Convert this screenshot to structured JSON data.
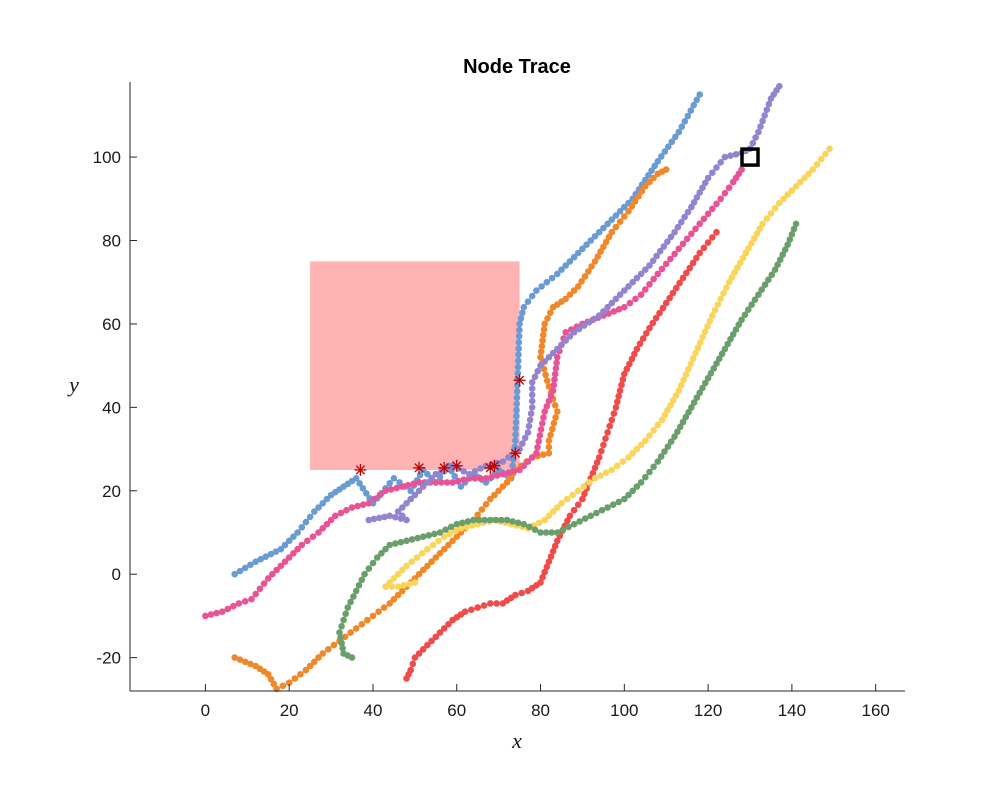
{
  "chart_data": {
    "type": "scatter",
    "title": "Node Trace",
    "xlabel": "x",
    "ylabel": "y",
    "xlim": [
      -18,
      167
    ],
    "ylim": [
      -28,
      118
    ],
    "xticks": [
      0,
      20,
      40,
      60,
      80,
      100,
      120,
      140,
      160
    ],
    "yticks": [
      -20,
      0,
      20,
      40,
      60,
      80,
      100
    ],
    "grid": false,
    "box": false,
    "obstacle": {
      "x": [
        25,
        75
      ],
      "y": [
        25,
        75
      ],
      "color": "#FFB3B3"
    },
    "target": {
      "x": 130,
      "y": 100,
      "marker": "square",
      "color": "#000000"
    },
    "collision_points": {
      "color": "#C00000",
      "marker": "asterisk",
      "points": [
        [
          37,
          25
        ],
        [
          51,
          25.5
        ],
        [
          57,
          25.5
        ],
        [
          60,
          26
        ],
        [
          68,
          25.5
        ],
        [
          69,
          26
        ],
        [
          74,
          29
        ],
        [
          75,
          46.5
        ]
      ]
    },
    "series": [
      {
        "color": "#6A9BD3",
        "points": [
          [
            7,
            0
          ],
          [
            12,
            3
          ],
          [
            18,
            6
          ],
          [
            22,
            10
          ],
          [
            26,
            15
          ],
          [
            30,
            19
          ],
          [
            33,
            21
          ],
          [
            36,
            23
          ],
          [
            40,
            17
          ],
          [
            45,
            23
          ],
          [
            49,
            20
          ],
          [
            52,
            25
          ],
          [
            55,
            22
          ],
          [
            58,
            26
          ],
          [
            61,
            21
          ],
          [
            64,
            24
          ],
          [
            67,
            22
          ],
          [
            70,
            25
          ],
          [
            73,
            23
          ],
          [
            74,
            32
          ],
          [
            75,
            60
          ],
          [
            76,
            64
          ],
          [
            79,
            68
          ],
          [
            84,
            72
          ],
          [
            90,
            78
          ],
          [
            96,
            84
          ],
          [
            102,
            90
          ],
          [
            108,
            99
          ],
          [
            113,
            106
          ],
          [
            118,
            115
          ]
        ]
      },
      {
        "color": "#F0882A",
        "points": [
          [
            7,
            -20
          ],
          [
            12,
            -22
          ],
          [
            15,
            -24
          ],
          [
            17,
            -27.5
          ],
          [
            20,
            -26
          ],
          [
            24,
            -23
          ],
          [
            28,
            -19
          ],
          [
            32,
            -16
          ],
          [
            36,
            -13
          ],
          [
            40,
            -10
          ],
          [
            44,
            -7
          ],
          [
            48,
            -3
          ],
          [
            52,
            1
          ],
          [
            56,
            5
          ],
          [
            60,
            9
          ],
          [
            64,
            13
          ],
          [
            68,
            18
          ],
          [
            72,
            22
          ],
          [
            74,
            25
          ],
          [
            78,
            28
          ],
          [
            82,
            29
          ],
          [
            82,
            32
          ],
          [
            84,
            39
          ],
          [
            82,
            45
          ],
          [
            80,
            52
          ],
          [
            81,
            60
          ],
          [
            83,
            64
          ],
          [
            86,
            66
          ],
          [
            89,
            69
          ],
          [
            93,
            75
          ],
          [
            97,
            82
          ],
          [
            101,
            87
          ],
          [
            105,
            93
          ],
          [
            108,
            96
          ],
          [
            110,
            97
          ]
        ]
      },
      {
        "color": "#E85395",
        "points": [
          [
            0,
            -10
          ],
          [
            4,
            -9
          ],
          [
            8,
            -7
          ],
          [
            11,
            -6
          ],
          [
            15,
            -1
          ],
          [
            19,
            3
          ],
          [
            23,
            7
          ],
          [
            27,
            10
          ],
          [
            31,
            14
          ],
          [
            35,
            16
          ],
          [
            39,
            17
          ],
          [
            43,
            20
          ],
          [
            47,
            21
          ],
          [
            51,
            22
          ],
          [
            55,
            22
          ],
          [
            59,
            22
          ],
          [
            63,
            23
          ],
          [
            67,
            23
          ],
          [
            71,
            24
          ],
          [
            75,
            25
          ],
          [
            79,
            29
          ],
          [
            81,
            39
          ],
          [
            83,
            44
          ],
          [
            84,
            52
          ],
          [
            86,
            58
          ],
          [
            90,
            60
          ],
          [
            95,
            62
          ],
          [
            100,
            64
          ],
          [
            104,
            67
          ],
          [
            108,
            72
          ],
          [
            113,
            78
          ],
          [
            118,
            84
          ],
          [
            123,
            90
          ],
          [
            126,
            94
          ],
          [
            128,
            97
          ]
        ]
      },
      {
        "color": "#9484D0",
        "points": [
          [
            39,
            13
          ],
          [
            44,
            14
          ],
          [
            48,
            13
          ],
          [
            46,
            15
          ],
          [
            51,
            20
          ],
          [
            55,
            24
          ],
          [
            59,
            26
          ],
          [
            63,
            24
          ],
          [
            67,
            26
          ],
          [
            71,
            27
          ],
          [
            75,
            30
          ],
          [
            77,
            34
          ],
          [
            78,
            40
          ],
          [
            78,
            46
          ],
          [
            80,
            50
          ],
          [
            84,
            54
          ],
          [
            88,
            58
          ],
          [
            94,
            62
          ],
          [
            100,
            68
          ],
          [
            106,
            74
          ],
          [
            112,
            82
          ],
          [
            116,
            88
          ],
          [
            120,
            95
          ],
          [
            124,
            100
          ],
          [
            128,
            101
          ],
          [
            130,
            102
          ],
          [
            132,
            106
          ],
          [
            135,
            114
          ],
          [
            137,
            117
          ]
        ]
      },
      {
        "color": "#EF4B4B",
        "points": [
          [
            48,
            -25
          ],
          [
            49,
            -23
          ],
          [
            50,
            -20
          ],
          [
            53,
            -17
          ],
          [
            56,
            -14
          ],
          [
            59,
            -11
          ],
          [
            62,
            -9
          ],
          [
            65,
            -8
          ],
          [
            68,
            -7
          ],
          [
            71,
            -7
          ],
          [
            74,
            -5
          ],
          [
            77,
            -4
          ],
          [
            80,
            -2
          ],
          [
            82,
            3
          ],
          [
            84,
            8
          ],
          [
            87,
            14
          ],
          [
            90,
            18
          ],
          [
            92,
            23
          ],
          [
            94,
            28
          ],
          [
            96,
            34
          ],
          [
            98,
            40
          ],
          [
            100,
            48
          ],
          [
            103,
            54
          ],
          [
            106,
            59
          ],
          [
            110,
            65
          ],
          [
            114,
            71
          ],
          [
            118,
            77
          ],
          [
            122,
            82
          ]
        ]
      },
      {
        "color": "#FAD55C",
        "points": [
          [
            50,
            -2
          ],
          [
            46,
            -3
          ],
          [
            43,
            -3
          ],
          [
            48,
            2
          ],
          [
            53,
            6
          ],
          [
            57,
            9
          ],
          [
            61,
            11
          ],
          [
            65,
            12
          ],
          [
            69,
            13
          ],
          [
            73,
            12
          ],
          [
            77,
            11
          ],
          [
            81,
            13
          ],
          [
            85,
            17
          ],
          [
            89,
            20
          ],
          [
            93,
            23
          ],
          [
            97,
            25
          ],
          [
            101,
            28
          ],
          [
            105,
            32
          ],
          [
            109,
            37
          ],
          [
            113,
            44
          ],
          [
            117,
            53
          ],
          [
            121,
            62
          ],
          [
            125,
            70
          ],
          [
            129,
            77
          ],
          [
            133,
            84
          ],
          [
            137,
            89
          ],
          [
            141,
            93
          ],
          [
            145,
            97
          ],
          [
            149,
            102
          ]
        ]
      },
      {
        "color": "#6A9E6A",
        "points": [
          [
            35,
            -20
          ],
          [
            33,
            -19
          ],
          [
            32,
            -14
          ],
          [
            34,
            -8
          ],
          [
            36,
            -4
          ],
          [
            38,
            0
          ],
          [
            41,
            4
          ],
          [
            44,
            7
          ],
          [
            48,
            8
          ],
          [
            52,
            9
          ],
          [
            56,
            10
          ],
          [
            60,
            12
          ],
          [
            64,
            13
          ],
          [
            68,
            13
          ],
          [
            72,
            13
          ],
          [
            76,
            12
          ],
          [
            80,
            10
          ],
          [
            84,
            10
          ],
          [
            88,
            12
          ],
          [
            92,
            14
          ],
          [
            96,
            16
          ],
          [
            100,
            18
          ],
          [
            104,
            22
          ],
          [
            108,
            27
          ],
          [
            112,
            33
          ],
          [
            116,
            40
          ],
          [
            120,
            47
          ],
          [
            124,
            54
          ],
          [
            128,
            61
          ],
          [
            132,
            67
          ],
          [
            136,
            73
          ],
          [
            139,
            79
          ],
          [
            141,
            84
          ]
        ]
      }
    ]
  }
}
